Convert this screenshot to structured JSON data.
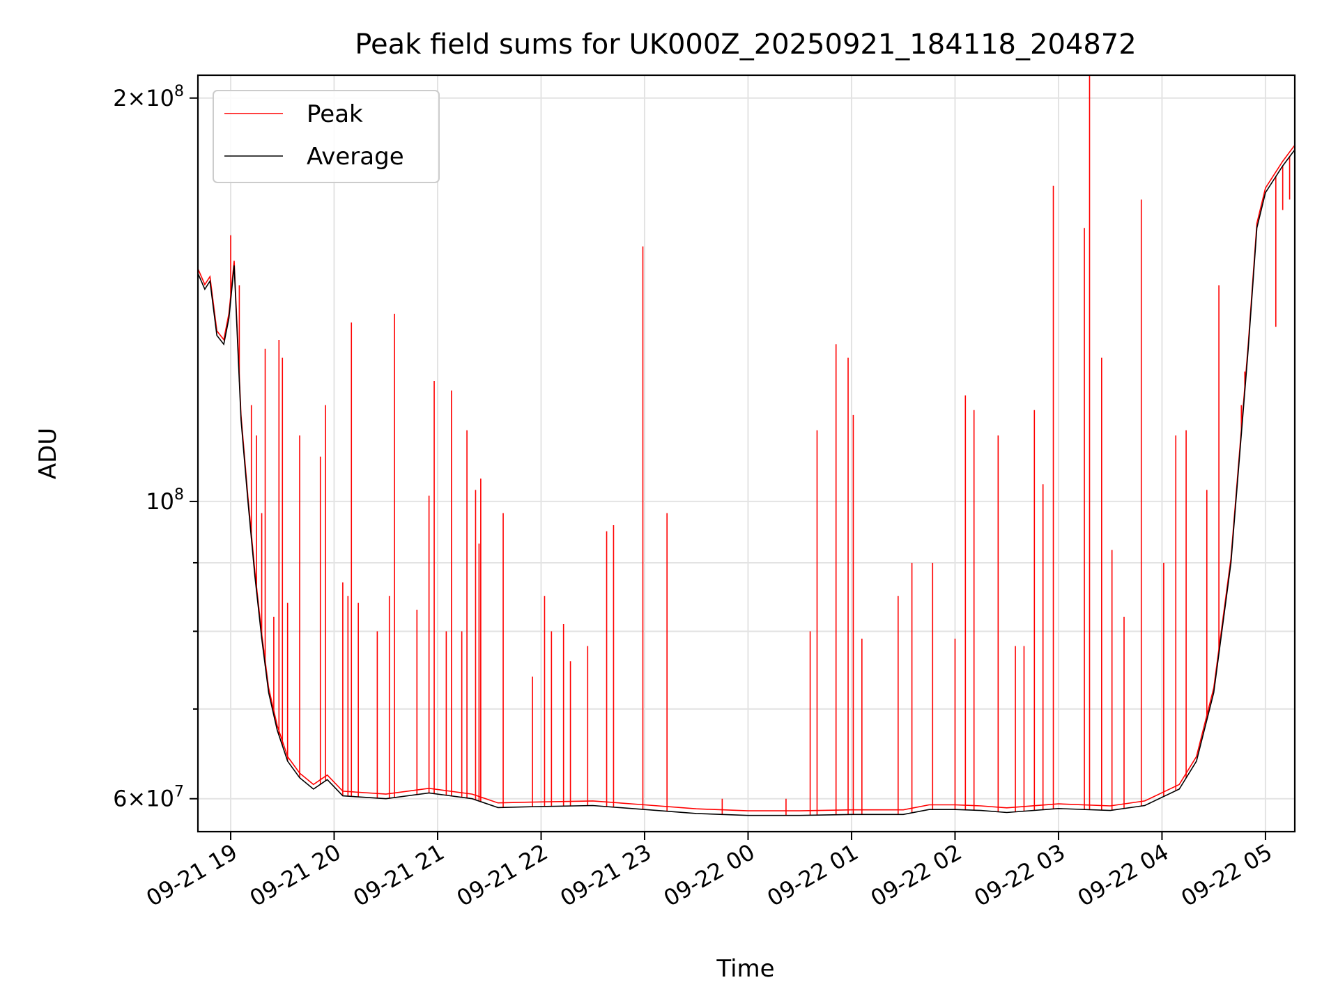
{
  "chart_data": {
    "type": "line",
    "title": "Peak field sums for UK000Z_20250921_184118_204872",
    "xlabel": "Time",
    "ylabel": "ADU",
    "y_scale": "log",
    "ylim": [
      56700000,
      208000000
    ],
    "xlim": [
      "2025-09-21 18:41",
      "2025-09-22 05:17"
    ],
    "x_ticks": [
      {
        "t": "2025-09-21 19:00",
        "label": "09-21 19"
      },
      {
        "t": "2025-09-21 20:00",
        "label": "09-21 20"
      },
      {
        "t": "2025-09-21 21:00",
        "label": "09-21 21"
      },
      {
        "t": "2025-09-21 22:00",
        "label": "09-21 22"
      },
      {
        "t": "2025-09-21 23:00",
        "label": "09-21 23"
      },
      {
        "t": "2025-09-22 00:00",
        "label": "09-22 00"
      },
      {
        "t": "2025-09-22 01:00",
        "label": "09-22 01"
      },
      {
        "t": "2025-09-22 02:00",
        "label": "09-22 02"
      },
      {
        "t": "2025-09-22 03:00",
        "label": "09-22 03"
      },
      {
        "t": "2025-09-22 04:00",
        "label": "09-22 04"
      },
      {
        "t": "2025-09-22 05:00",
        "label": "09-22 05"
      }
    ],
    "y_major_ticks": [
      {
        "value": 60000000,
        "mantissa": "6",
        "exp": "7"
      },
      {
        "value": 100000000,
        "mantissa": "",
        "exp": "8"
      },
      {
        "value": 200000000,
        "mantissa": "2",
        "exp": "8"
      }
    ],
    "y_minor_ticks": [
      70000000,
      80000000,
      90000000
    ],
    "grid": true,
    "legend_position": "upper-left",
    "series": [
      {
        "name": "Average",
        "color": "#000000",
        "points": [
          [
            "2025-09-21 18:41",
            148000000
          ],
          [
            "2025-09-21 18:45",
            144000000
          ],
          [
            "2025-09-21 18:48",
            146000000
          ],
          [
            "2025-09-21 18:52",
            133000000
          ],
          [
            "2025-09-21 18:56",
            131000000
          ],
          [
            "2025-09-21 18:59",
            137000000
          ],
          [
            "2025-09-21 19:02",
            150000000
          ],
          [
            "2025-09-21 19:06",
            115000000
          ],
          [
            "2025-09-21 19:10",
            100000000
          ],
          [
            "2025-09-21 19:14",
            88000000
          ],
          [
            "2025-09-21 19:18",
            79000000
          ],
          [
            "2025-09-21 19:22",
            72000000
          ],
          [
            "2025-09-21 19:27",
            67500000
          ],
          [
            "2025-09-21 19:33",
            64000000
          ],
          [
            "2025-09-21 19:40",
            62200000
          ],
          [
            "2025-09-21 19:48",
            61000000
          ],
          [
            "2025-09-21 19:56",
            62000000
          ],
          [
            "2025-09-21 20:05",
            60300000
          ],
          [
            "2025-09-21 20:30",
            60000000
          ],
          [
            "2025-09-21 20:55",
            60600000
          ],
          [
            "2025-09-21 21:20",
            60000000
          ],
          [
            "2025-09-21 21:35",
            59100000
          ],
          [
            "2025-09-21 22:00",
            59200000
          ],
          [
            "2025-09-21 22:30",
            59300000
          ],
          [
            "2025-09-21 23:00",
            58900000
          ],
          [
            "2025-09-21 23:30",
            58500000
          ],
          [
            "2025-09-22 00:00",
            58300000
          ],
          [
            "2025-09-22 00:30",
            58300000
          ],
          [
            "2025-09-22 01:00",
            58400000
          ],
          [
            "2025-09-22 01:30",
            58400000
          ],
          [
            "2025-09-22 01:45",
            58900000
          ],
          [
            "2025-09-22 02:00",
            58900000
          ],
          [
            "2025-09-22 02:15",
            58800000
          ],
          [
            "2025-09-22 02:30",
            58600000
          ],
          [
            "2025-09-22 03:00",
            59000000
          ],
          [
            "2025-09-22 03:30",
            58800000
          ],
          [
            "2025-09-22 03:50",
            59300000
          ],
          [
            "2025-09-22 04:10",
            61000000
          ],
          [
            "2025-09-22 04:20",
            64000000
          ],
          [
            "2025-09-22 04:30",
            72000000
          ],
          [
            "2025-09-22 04:40",
            90000000
          ],
          [
            "2025-09-22 04:50",
            130000000
          ],
          [
            "2025-09-22 04:55",
            160000000
          ],
          [
            "2025-09-22 05:00",
            170000000
          ],
          [
            "2025-09-22 05:10",
            178000000
          ],
          [
            "2025-09-22 05:17",
            183000000
          ]
        ]
      },
      {
        "name": "Peak",
        "color": "#ff0000",
        "spikes": [
          [
            "2025-09-21 19:00",
            158000000
          ],
          [
            "2025-09-21 19:05",
            145000000
          ],
          [
            "2025-09-21 19:12",
            118000000
          ],
          [
            "2025-09-21 19:15",
            112000000
          ],
          [
            "2025-09-21 19:18",
            98000000
          ],
          [
            "2025-09-21 19:20",
            130000000
          ],
          [
            "2025-09-21 19:25",
            82000000
          ],
          [
            "2025-09-21 19:28",
            132000000
          ],
          [
            "2025-09-21 19:30",
            128000000
          ],
          [
            "2025-09-21 19:33",
            84000000
          ],
          [
            "2025-09-21 19:40",
            112000000
          ],
          [
            "2025-09-21 19:52",
            108000000
          ],
          [
            "2025-09-21 19:55",
            118000000
          ],
          [
            "2025-09-21 20:05",
            87000000
          ],
          [
            "2025-09-21 20:08",
            85000000
          ],
          [
            "2025-09-21 20:10",
            136000000
          ],
          [
            "2025-09-21 20:14",
            84000000
          ],
          [
            "2025-09-21 20:25",
            80000000
          ],
          [
            "2025-09-21 20:32",
            85000000
          ],
          [
            "2025-09-21 20:35",
            138000000
          ],
          [
            "2025-09-21 20:48",
            83000000
          ],
          [
            "2025-09-21 20:55",
            101000000
          ],
          [
            "2025-09-21 20:58",
            123000000
          ],
          [
            "2025-09-21 21:05",
            80000000
          ],
          [
            "2025-09-21 21:08",
            121000000
          ],
          [
            "2025-09-21 21:14",
            80000000
          ],
          [
            "2025-09-21 21:17",
            113000000
          ],
          [
            "2025-09-21 21:22",
            102000000
          ],
          [
            "2025-09-21 21:24",
            93000000
          ],
          [
            "2025-09-21 21:25",
            104000000
          ],
          [
            "2025-09-21 21:38",
            98000000
          ],
          [
            "2025-09-21 21:55",
            74000000
          ],
          [
            "2025-09-21 22:02",
            85000000
          ],
          [
            "2025-09-21 22:06",
            80000000
          ],
          [
            "2025-09-21 22:13",
            81000000
          ],
          [
            "2025-09-21 22:17",
            76000000
          ],
          [
            "2025-09-21 22:27",
            78000000
          ],
          [
            "2025-09-21 22:38",
            95000000
          ],
          [
            "2025-09-21 22:42",
            96000000
          ],
          [
            "2025-09-21 22:59",
            155000000
          ],
          [
            "2025-09-21 23:13",
            98000000
          ],
          [
            "2025-09-21 23:45",
            60000000
          ],
          [
            "2025-09-22 00:22",
            60000000
          ],
          [
            "2025-09-22 00:36",
            80000000
          ],
          [
            "2025-09-22 00:40",
            113000000
          ],
          [
            "2025-09-22 00:51",
            131000000
          ],
          [
            "2025-09-22 00:58",
            128000000
          ],
          [
            "2025-09-22 01:01",
            116000000
          ],
          [
            "2025-09-22 01:06",
            79000000
          ],
          [
            "2025-09-22 01:27",
            85000000
          ],
          [
            "2025-09-22 01:35",
            90000000
          ],
          [
            "2025-09-22 01:47",
            90000000
          ],
          [
            "2025-09-22 02:00",
            79000000
          ],
          [
            "2025-09-22 02:06",
            120000000
          ],
          [
            "2025-09-22 02:11",
            117000000
          ],
          [
            "2025-09-22 02:25",
            112000000
          ],
          [
            "2025-09-22 02:35",
            78000000
          ],
          [
            "2025-09-22 02:40",
            78000000
          ],
          [
            "2025-09-22 02:46",
            117000000
          ],
          [
            "2025-09-22 02:51",
            103000000
          ],
          [
            "2025-09-22 02:57",
            172000000
          ],
          [
            "2025-09-22 03:15",
            160000000
          ],
          [
            "2025-09-22 03:18",
            208000000
          ],
          [
            "2025-09-22 03:25",
            128000000
          ],
          [
            "2025-09-22 03:31",
            92000000
          ],
          [
            "2025-09-22 03:38",
            82000000
          ],
          [
            "2025-09-22 03:48",
            168000000
          ],
          [
            "2025-09-22 04:01",
            90000000
          ],
          [
            "2025-09-22 04:08",
            112000000
          ],
          [
            "2025-09-22 04:14",
            113000000
          ],
          [
            "2025-09-22 04:26",
            102000000
          ],
          [
            "2025-09-22 04:33",
            145000000
          ],
          [
            "2025-09-22 04:46",
            118000000
          ],
          [
            "2025-09-22 04:48",
            125000000
          ],
          [
            "2025-09-22 05:06",
            135000000
          ],
          [
            "2025-09-22 05:10",
            165000000
          ],
          [
            "2025-09-22 05:14",
            168000000
          ]
        ]
      }
    ]
  }
}
